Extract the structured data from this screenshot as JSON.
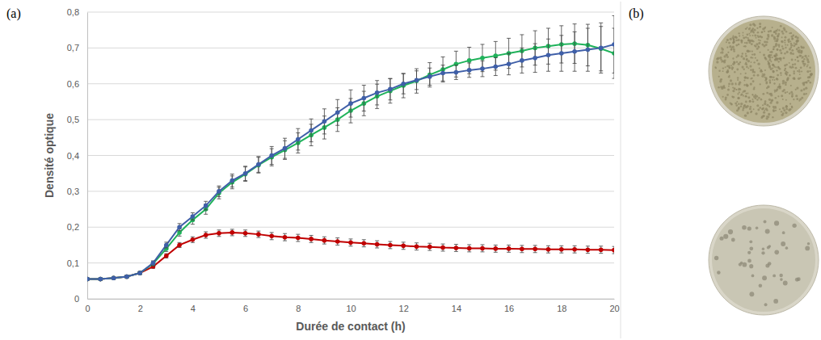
{
  "panel_labels": [
    "(a)",
    "(b)"
  ],
  "chart_data": {
    "type": "line",
    "x_label": "Durée de contact (h)",
    "y_label": "Densité optique",
    "x": [
      0,
      0.5,
      1,
      1.5,
      2,
      2.5,
      3,
      3.5,
      4,
      4.5,
      5,
      5.5,
      6,
      6.5,
      7,
      7.5,
      8,
      8.5,
      9,
      9.5,
      10,
      10.5,
      11,
      11.5,
      12,
      12.5,
      13,
      13.5,
      14,
      14.5,
      15,
      15.5,
      16,
      16.5,
      17,
      17.5,
      18,
      18.5,
      19,
      19.5,
      20
    ],
    "xlim": [
      0,
      20
    ],
    "xticks": [
      0,
      2,
      4,
      6,
      8,
      10,
      12,
      14,
      16,
      18,
      20
    ],
    "ylim": [
      0,
      0.8
    ],
    "yticks": [
      0,
      {
        "value": 0.1,
        "label": "0,1"
      },
      {
        "value": 0.2,
        "label": "0,2"
      },
      {
        "value": 0.3,
        "label": "0,3"
      },
      {
        "value": 0.4,
        "label": "0,4"
      },
      {
        "value": 0.5,
        "label": "0,5"
      },
      {
        "value": 0.6,
        "label": "0,6"
      },
      {
        "value": 0.7,
        "label": "0,7"
      },
      {
        "value": 0.8,
        "label": "0,8"
      }
    ],
    "grid": true,
    "marker": "circle",
    "series": [
      {
        "color": "#c00000",
        "values": [
          0.055,
          0.055,
          0.058,
          0.062,
          0.072,
          0.09,
          0.12,
          0.15,
          0.165,
          0.178,
          0.183,
          0.185,
          0.183,
          0.18,
          0.175,
          0.172,
          0.17,
          0.167,
          0.163,
          0.16,
          0.157,
          0.155,
          0.152,
          0.15,
          0.148,
          0.146,
          0.145,
          0.143,
          0.142,
          0.141,
          0.141,
          0.14,
          0.14,
          0.139,
          0.139,
          0.138,
          0.138,
          0.138,
          0.137,
          0.137,
          0.136
        ],
        "errors": [
          0.003,
          0.003,
          0.003,
          0.003,
          0.003,
          0.005,
          0.006,
          0.007,
          0.008,
          0.009,
          0.009,
          0.009,
          0.009,
          0.009,
          0.01,
          0.01,
          0.01,
          0.01,
          0.01,
          0.01,
          0.01,
          0.01,
          0.01,
          0.01,
          0.01,
          0.01,
          0.01,
          0.01,
          0.01,
          0.01,
          0.01,
          0.01,
          0.01,
          0.01,
          0.01,
          0.01,
          0.01,
          0.01,
          0.01,
          0.01,
          0.01
        ]
      },
      {
        "color": "#1fb25a",
        "values": [
          0.055,
          0.055,
          0.058,
          0.062,
          0.072,
          0.098,
          0.14,
          0.185,
          0.22,
          0.25,
          0.295,
          0.325,
          0.348,
          0.373,
          0.395,
          0.415,
          0.435,
          0.457,
          0.478,
          0.5,
          0.525,
          0.545,
          0.565,
          0.58,
          0.595,
          0.608,
          0.625,
          0.64,
          0.655,
          0.665,
          0.672,
          0.678,
          0.685,
          0.692,
          0.7,
          0.705,
          0.71,
          0.712,
          0.708,
          0.698,
          0.685
        ],
        "errors": [
          0.003,
          0.003,
          0.003,
          0.003,
          0.004,
          0.006,
          0.008,
          0.01,
          0.012,
          0.014,
          0.016,
          0.018,
          0.02,
          0.022,
          0.024,
          0.026,
          0.028,
          0.03,
          0.032,
          0.033,
          0.034,
          0.034,
          0.034,
          0.034,
          0.034,
          0.034,
          0.034,
          0.035,
          0.036,
          0.037,
          0.038,
          0.04,
          0.042,
          0.045,
          0.048,
          0.05,
          0.052,
          0.055,
          0.058,
          0.062,
          0.07
        ]
      },
      {
        "color": "#3f5fa8",
        "values": [
          0.055,
          0.055,
          0.058,
          0.062,
          0.072,
          0.1,
          0.15,
          0.2,
          0.23,
          0.26,
          0.3,
          0.33,
          0.35,
          0.375,
          0.4,
          0.42,
          0.445,
          0.47,
          0.495,
          0.52,
          0.545,
          0.56,
          0.575,
          0.585,
          0.6,
          0.61,
          0.62,
          0.63,
          0.632,
          0.638,
          0.642,
          0.648,
          0.655,
          0.665,
          0.672,
          0.68,
          0.685,
          0.69,
          0.695,
          0.7,
          0.71
        ],
        "errors": [
          0.003,
          0.003,
          0.003,
          0.003,
          0.004,
          0.006,
          0.008,
          0.01,
          0.01,
          0.012,
          0.015,
          0.018,
          0.02,
          0.022,
          0.025,
          0.028,
          0.03,
          0.032,
          0.035,
          0.036,
          0.038,
          0.036,
          0.034,
          0.03,
          0.028,
          0.026,
          0.024,
          0.022,
          0.02,
          0.02,
          0.022,
          0.025,
          0.03,
          0.035,
          0.04,
          0.045,
          0.05,
          0.055,
          0.06,
          0.07,
          0.08
        ]
      }
    ]
  }
}
